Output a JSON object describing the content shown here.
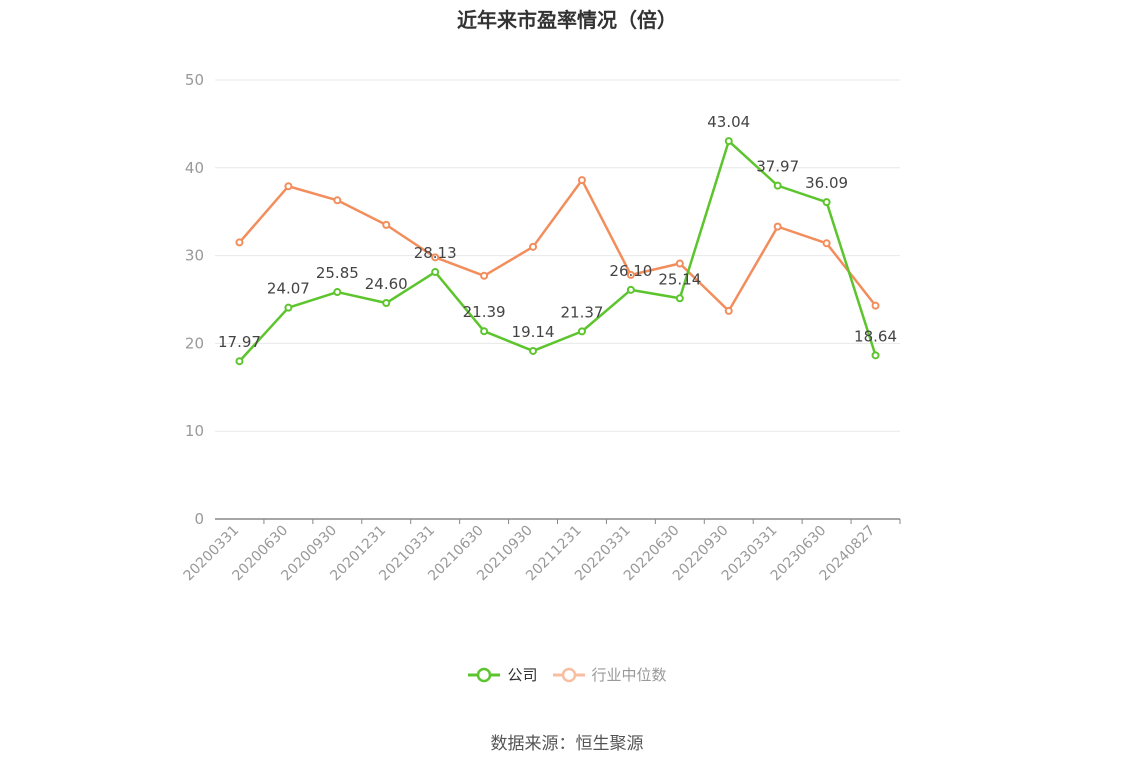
{
  "chart_data": {
    "type": "line",
    "title": "近年来市盈率情况（倍）",
    "x": [
      "20200331",
      "20200630",
      "20200930",
      "20201231",
      "20210331",
      "20210630",
      "20210930",
      "20211231",
      "20220331",
      "20220630",
      "20220930",
      "20230331",
      "20230630",
      "20240827"
    ],
    "series": [
      {
        "name": "公司",
        "color": "#5cc52d",
        "values": [
          17.97,
          24.07,
          25.85,
          24.6,
          28.13,
          21.39,
          19.14,
          21.37,
          26.1,
          25.14,
          43.04,
          37.97,
          36.09,
          18.64
        ],
        "labels": [
          "17.97",
          "24.07",
          "25.85",
          "24.60",
          "28.13",
          "21.39",
          "19.14",
          "21.37",
          "26.10",
          "25.14",
          "43.04",
          "37.97",
          "36.09",
          "18.64"
        ]
      },
      {
        "name": "行业中位数",
        "color": "#f28d5c",
        "values": [
          31.5,
          37.9,
          36.3,
          33.5,
          29.8,
          27.7,
          31.0,
          38.6,
          27.8,
          29.1,
          23.7,
          33.3,
          31.4,
          24.3
        ]
      }
    ],
    "yticks": [
      "0",
      "10",
      "20",
      "30",
      "40",
      "50"
    ],
    "ylim": [
      0,
      50
    ],
    "grid": true,
    "legend_position": "bottom",
    "source": "数据来源：恒生聚源"
  }
}
